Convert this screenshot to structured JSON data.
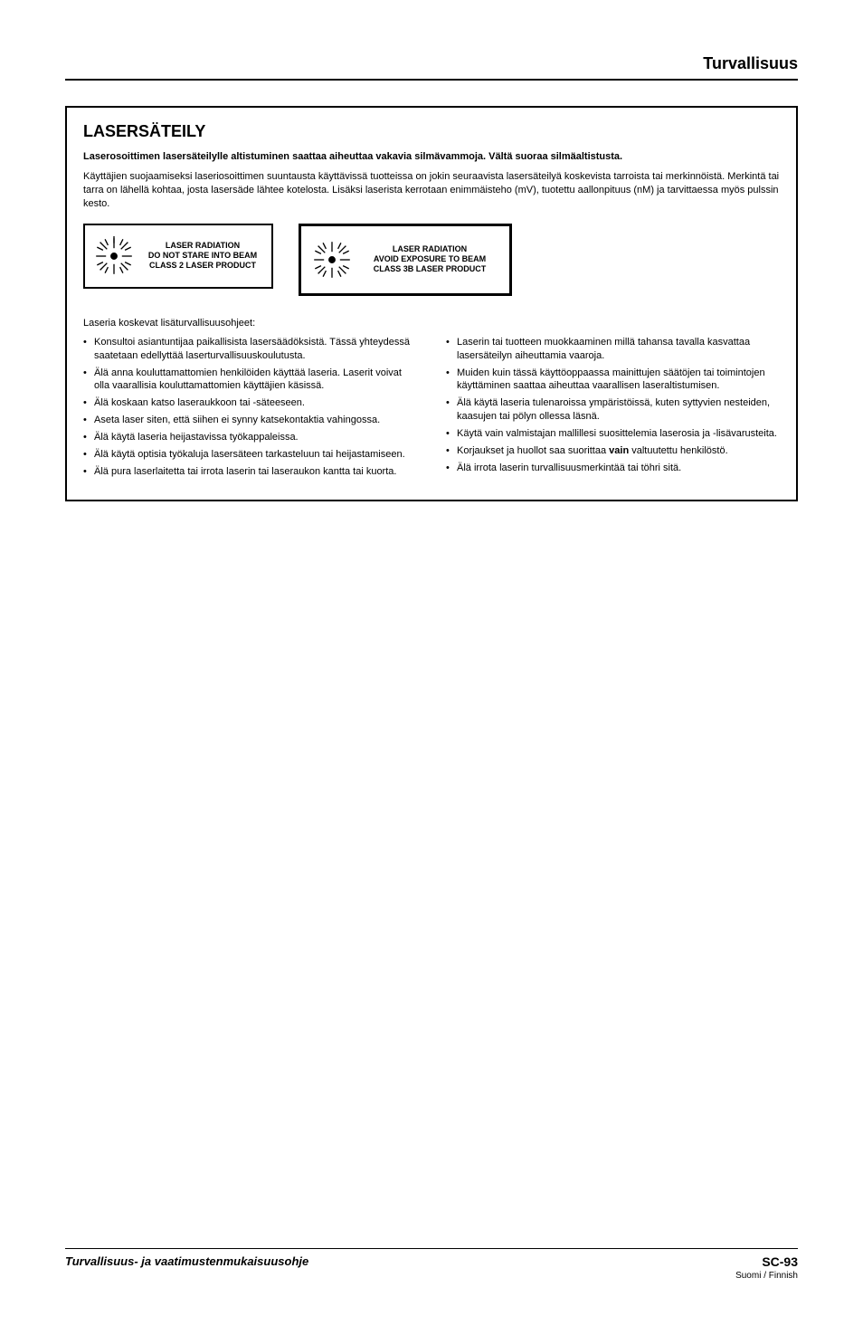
{
  "header": {
    "title": "Turvallisuus"
  },
  "section": {
    "title": "LASERSÄTEILY",
    "warning": "Laserosoittimen lasersäteilylle altistuminen saattaa aiheuttaa vakavia silmävammoja. Vältä suoraa silmäaltistusta.",
    "intro": "Käyttäjien suojaamiseksi laseriosoittimen suuntausta käyttävissä tuotteissa on jokin seuraavista lasersäteilyä koskevista tarroista tai merkinnöistä. Merkintä tai tarra on lähellä kohtaa, josta lasersäde lähtee kotelosta. Lisäksi laserista kerrotaan enimmäisteho (mV), tuotettu aallonpituus (nM) ja tarvittaessa myös pulssin kesto.",
    "label1": {
      "line1": "LASER RADIATION",
      "line2": "DO NOT STARE INTO BEAM",
      "line3": "CLASS 2 LASER PRODUCT"
    },
    "label2": {
      "line1": "LASER RADIATION",
      "line2": "AVOID EXPOSURE TO BEAM",
      "line3": "CLASS 3B LASER PRODUCT"
    },
    "list_intro": "Laseria koskevat lisäturvallisuusohjeet:",
    "left_items": [
      "Konsultoi asiantuntijaa paikallisista lasersäädöksistä. Tässä yhteydessä saatetaan edellyttää laserturvallisuuskoulutusta.",
      "Älä anna kouluttamattomien henkilöiden käyttää laseria. Laserit voivat olla vaarallisia kouluttamattomien käyttäjien käsissä.",
      "Älä koskaan katso laseraukkoon tai -säteeseen.",
      "Aseta laser siten, että siihen ei synny katsekontaktia vahingossa.",
      "Älä käytä laseria heijastavissa työkappaleissa.",
      "Älä käytä optisia työkaluja lasersäteen tarkasteluun tai heijastamiseen.",
      "Älä pura laserlaitetta tai irrota laserin tai laseraukon kantta tai kuorta."
    ],
    "right_items": [
      "Laserin tai tuotteen muokkaaminen millä tahansa tavalla kasvattaa lasersäteilyn aiheuttamia vaaroja.",
      "Muiden kuin tässä käyttöoppaassa mainittujen säätöjen tai toimintojen käyttäminen saattaa aiheuttaa vaarallisen laseraltistumisen.",
      "Älä käytä laseria tulenaroissa ympäristöissä, kuten syttyvien nesteiden, kaasujen tai pölyn ollessa läsnä.",
      "Käytä vain valmistajan mallillesi suosittelemia laserosia ja -lisävarusteita.",
      "Korjaukset ja huollot saa suorittaa <b>vain</b> valtuutettu henkilöstö.",
      "Älä irrota laserin turvallisuusmerkintää tai töhri sitä."
    ]
  },
  "footer": {
    "left": "Turvallisuus- ja vaatimustenmukaisuusohje",
    "page": "SC-93",
    "lang": "Suomi / Finnish"
  }
}
